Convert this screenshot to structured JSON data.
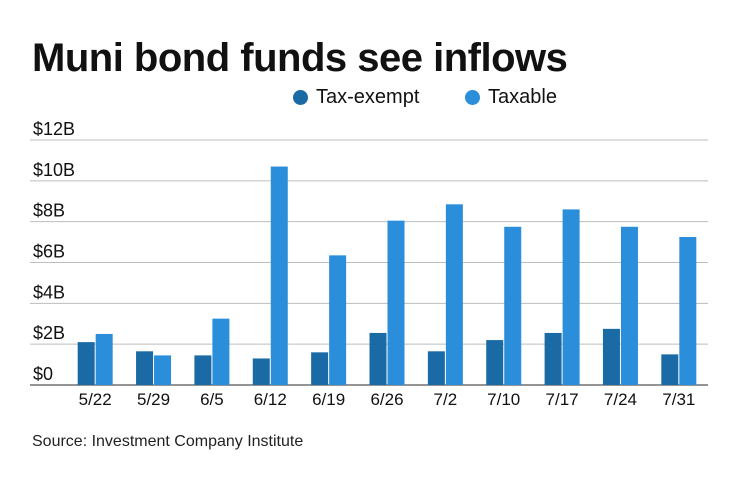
{
  "title": "Muni bond funds see inflows",
  "source": "Source: Investment Company Institute",
  "colors": {
    "tax_exempt": "#1a6aa5",
    "taxable": "#2a8edb",
    "grid": "#bdbdbd",
    "axis": "#555555"
  },
  "chart_data": {
    "type": "bar",
    "title": "Muni bond funds see inflows",
    "categories": [
      "5/22",
      "5/29",
      "6/5",
      "6/12",
      "6/19",
      "6/26",
      "7/2",
      "7/10",
      "7/17",
      "7/24",
      "7/31"
    ],
    "series": [
      {
        "name": "Tax-exempt",
        "values": [
          2.1,
          1.65,
          1.45,
          1.3,
          1.6,
          2.55,
          1.65,
          2.2,
          2.55,
          2.75,
          1.5
        ]
      },
      {
        "name": "Taxable",
        "values": [
          2.5,
          1.45,
          3.25,
          10.7,
          6.35,
          8.05,
          8.85,
          7.75,
          8.6,
          7.75,
          7.25
        ]
      }
    ],
    "y_tick_labels": [
      "$0",
      "$2B",
      "$4B",
      "$6B",
      "$8B",
      "$10B",
      "$12B"
    ],
    "y_ticks": [
      0,
      2,
      4,
      6,
      8,
      10,
      12
    ],
    "ylim": [
      0,
      12
    ],
    "xlabel": "",
    "ylabel": "",
    "grid": true,
    "legend_position": "top-right"
  }
}
